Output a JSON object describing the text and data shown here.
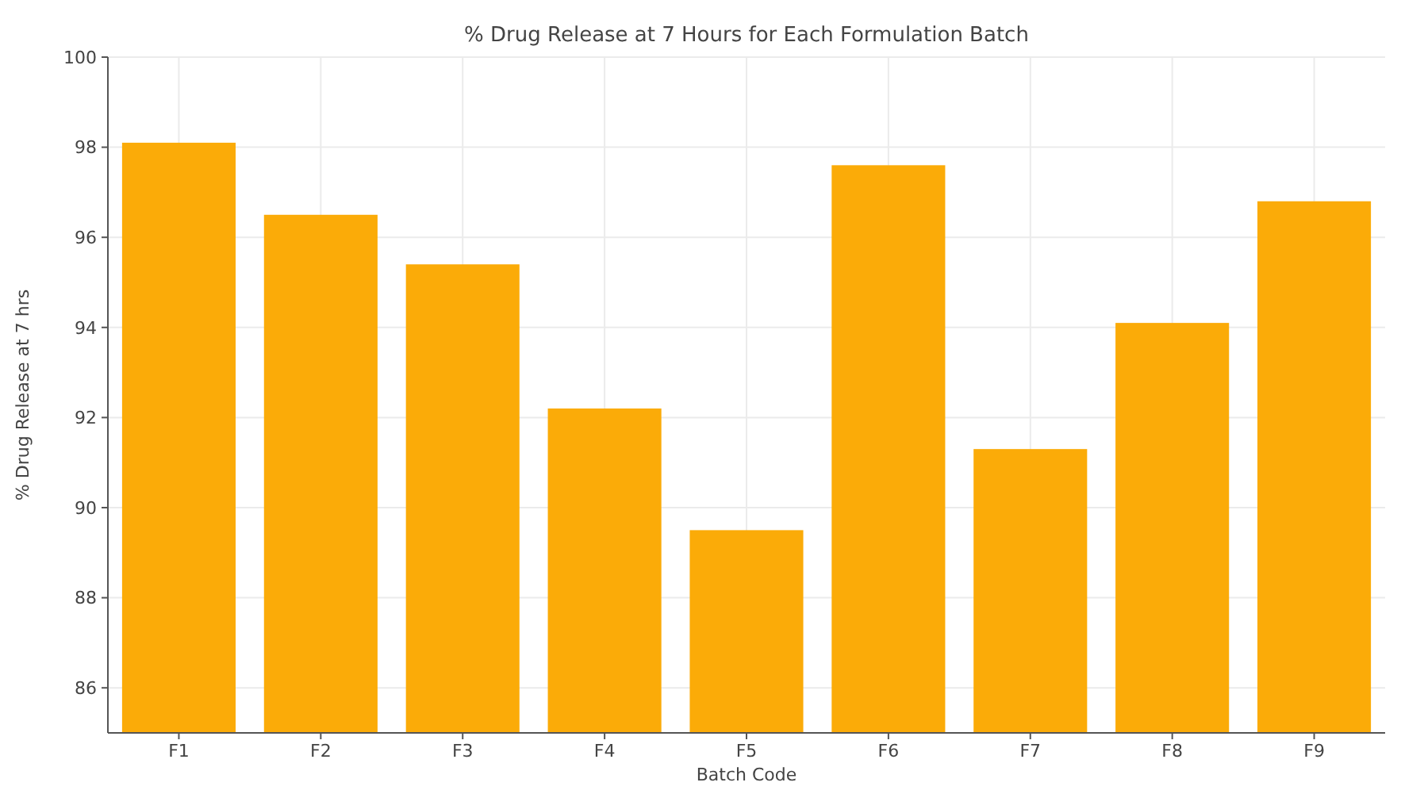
{
  "chart_data": {
    "type": "bar",
    "title": "% Drug Release at 7 Hours for Each Formulation Batch",
    "xlabel": "Batch Code",
    "ylabel": "% Drug Release at 7 hrs",
    "categories": [
      "F1",
      "F2",
      "F3",
      "F4",
      "F5",
      "F6",
      "F7",
      "F8",
      "F9"
    ],
    "values": [
      98.1,
      96.5,
      95.4,
      92.2,
      89.5,
      97.6,
      91.3,
      94.1,
      96.8
    ],
    "color": "#fbab08",
    "ylim": [
      85,
      100
    ],
    "yticks": [
      86,
      88,
      90,
      92,
      94,
      96,
      98,
      100
    ],
    "grid": true
  }
}
